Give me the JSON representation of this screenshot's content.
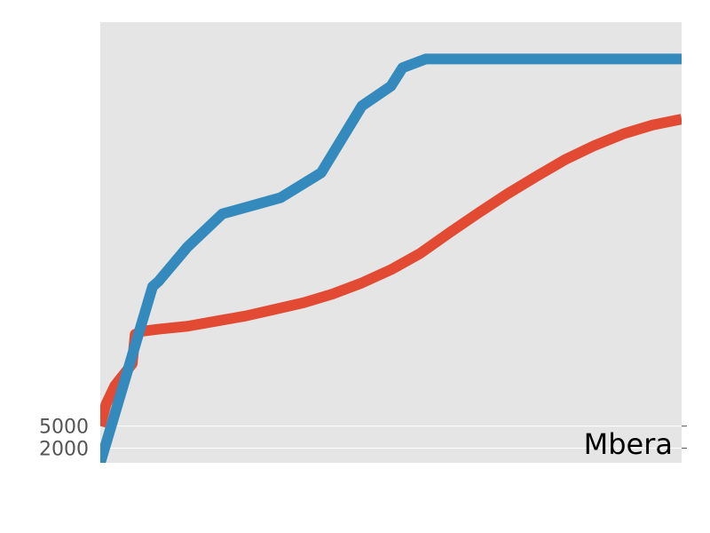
{
  "chart_data": {
    "type": "line",
    "title": "",
    "xlabel": "",
    "ylabel": "",
    "annotation": "Mbera",
    "background_color": "#e5e5e5",
    "grid": true,
    "grid_color": "#ffffff",
    "xlim": [
      0,
      100
    ],
    "ylim": [
      0,
      60000
    ],
    "yticks": [
      2000,
      5000
    ],
    "ytick_labels": [
      "2000",
      "5000"
    ],
    "series": [
      {
        "color": "#e24a33",
        "points": [
          [
            0,
            5000
          ],
          [
            1,
            8000
          ],
          [
            2.5,
            10500
          ],
          [
            4,
            12000
          ],
          [
            5.5,
            13500
          ],
          [
            6,
            17500
          ],
          [
            7,
            17900
          ],
          [
            10,
            18200
          ],
          [
            15,
            18600
          ],
          [
            20,
            19300
          ],
          [
            25,
            20000
          ],
          [
            30,
            20900
          ],
          [
            35,
            21800
          ],
          [
            40,
            23000
          ],
          [
            45,
            24500
          ],
          [
            50,
            26300
          ],
          [
            55,
            28500
          ],
          [
            60,
            31300
          ],
          [
            65,
            34000
          ],
          [
            70,
            36600
          ],
          [
            75,
            39000
          ],
          [
            80,
            41300
          ],
          [
            85,
            43200
          ],
          [
            90,
            44800
          ],
          [
            95,
            46000
          ],
          [
            100,
            46800
          ]
        ]
      },
      {
        "color": "#348abd",
        "points": [
          [
            0,
            0
          ],
          [
            3,
            8000
          ],
          [
            6,
            16000
          ],
          [
            9,
            24000
          ],
          [
            10,
            24700
          ],
          [
            15,
            29400
          ],
          [
            21,
            33900
          ],
          [
            31,
            36100
          ],
          [
            38,
            39500
          ],
          [
            45,
            48600
          ],
          [
            50,
            51300
          ],
          [
            52,
            53800
          ],
          [
            56,
            55000
          ],
          [
            100,
            55000
          ]
        ]
      }
    ]
  }
}
